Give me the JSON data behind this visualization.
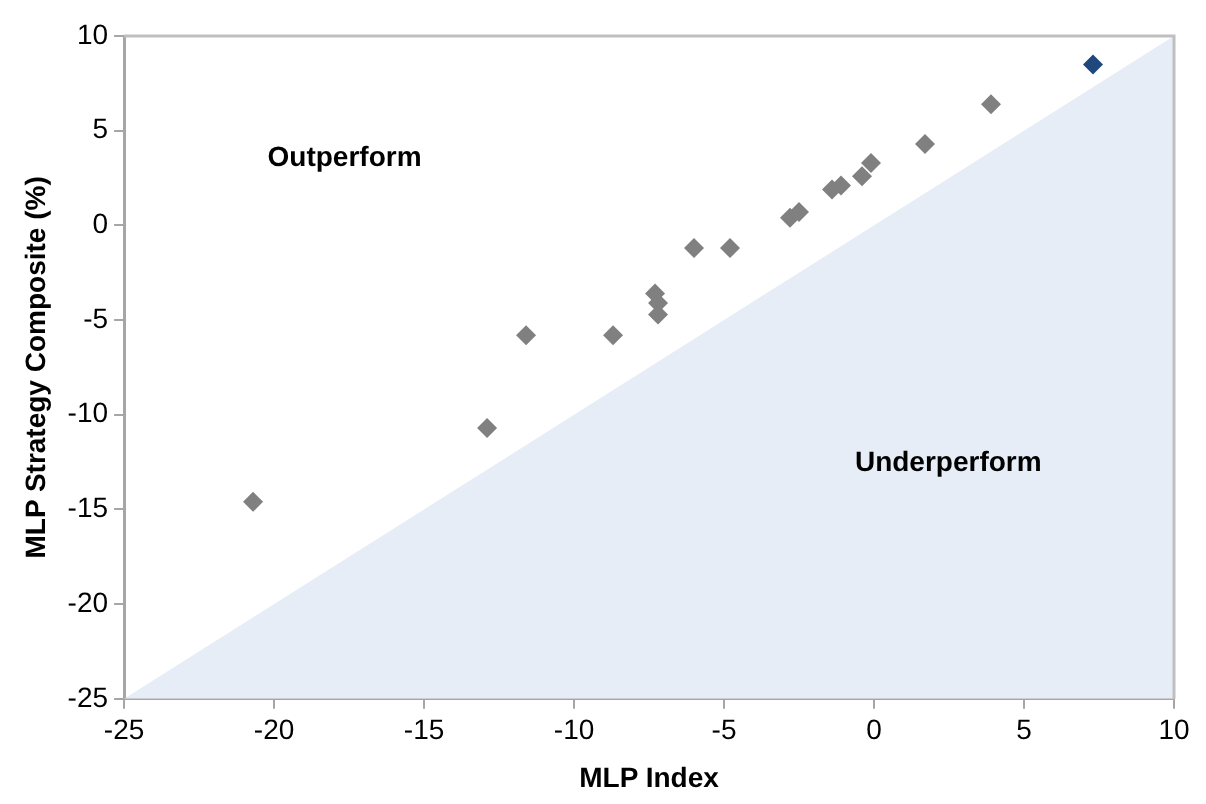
{
  "chart_data": {
    "type": "scatter",
    "xlabel": "MLP Index",
    "ylabel": "MLP Strategy Composite (%)",
    "xlim": [
      -25,
      10
    ],
    "ylim": [
      -25,
      10
    ],
    "xticks": [
      -25,
      -20,
      -15,
      -10,
      -5,
      0,
      5,
      10
    ],
    "yticks": [
      -25,
      -20,
      -15,
      -10,
      -5,
      0,
      5,
      10
    ],
    "grid": false,
    "legend": false,
    "marker": "diamond",
    "series": [
      {
        "type": "area",
        "marker": "none",
        "color": "#e6edf6",
        "x": [
          -25,
          10
        ],
        "values": [
          -25,
          10
        ]
      },
      {
        "color": "#808080",
        "x": [
          -20.7,
          -12.9,
          -11.6,
          -8.7,
          -7.3,
          -7.2,
          -7.2,
          -6.0,
          -4.8,
          -2.8,
          -2.5,
          -1.4,
          -1.1,
          -0.4,
          -0.1,
          1.7,
          3.9
        ],
        "values": [
          -14.6,
          -10.7,
          -5.8,
          -5.8,
          -3.6,
          -4.1,
          -4.7,
          -1.2,
          -1.2,
          0.4,
          0.7,
          1.9,
          2.1,
          2.6,
          3.3,
          4.3,
          6.4
        ]
      },
      {
        "color": "#1f497d",
        "x": [
          7.3
        ],
        "values": [
          8.5
        ]
      }
    ],
    "annotations": [
      "Outperform",
      "Underperform"
    ]
  }
}
